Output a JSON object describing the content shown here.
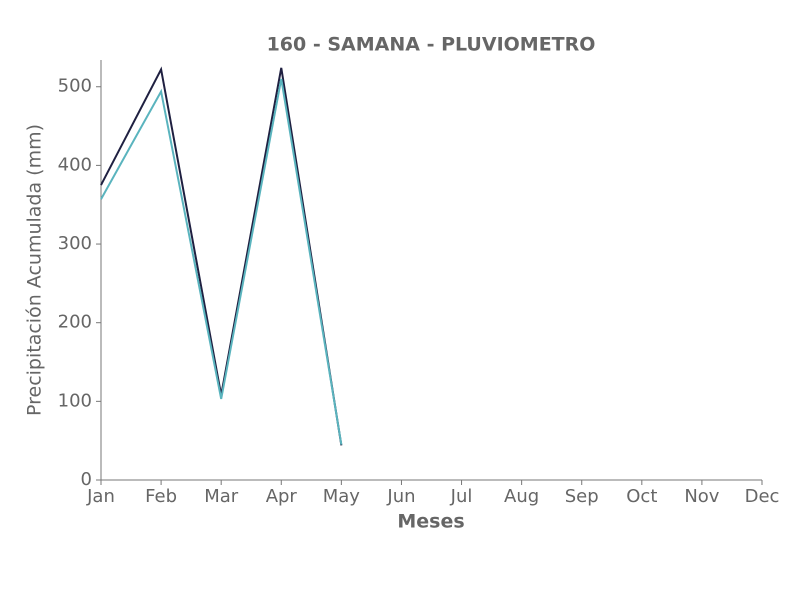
{
  "chart_data": {
    "type": "line",
    "title": "160 - SAMANA - PLUVIOMETRO",
    "x_label": "Meses",
    "y_label": "Precipitación Acumulada (mm)",
    "categories": [
      "Jan",
      "Feb",
      "Mar",
      "Apr",
      "May",
      "Jun",
      "Jul",
      "Aug",
      "Sep",
      "Oct",
      "Nov",
      "Dec"
    ],
    "series": [
      {
        "color": "#1f2041",
        "values": [
          375,
          522,
          108,
          524,
          44,
          null,
          null,
          null,
          null,
          null,
          null,
          null
        ]
      },
      {
        "color": "#5ab4be",
        "values": [
          357,
          494,
          103,
          510,
          45,
          null,
          null,
          null,
          null,
          null,
          null,
          null
        ]
      }
    ],
    "ylim": [
      0,
      534
    ],
    "yticks": [
      0,
      100,
      200,
      300,
      400,
      500
    ],
    "grid": false
  }
}
